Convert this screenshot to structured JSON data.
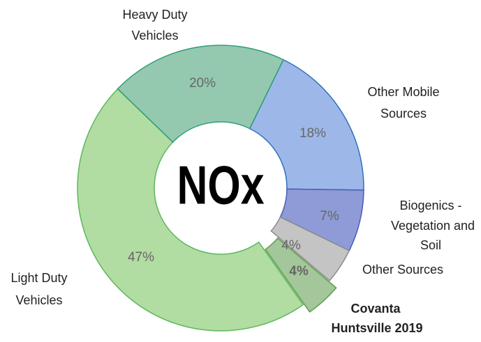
{
  "chart_data": {
    "type": "donut",
    "center_text": "NOx",
    "categories": [
      [
        "Other Mobile",
        "Sources"
      ],
      [
        "Biogenics -",
        "Vegetation and",
        "Soil"
      ],
      [
        "Other Sources"
      ],
      [
        "Covanta",
        "Huntsville 2019"
      ],
      [
        "Light Duty",
        "Vehicles"
      ],
      [
        "Heavy Duty",
        "Vehicles"
      ]
    ],
    "values": [
      18,
      7,
      4,
      4,
      47,
      20
    ],
    "value_labels": [
      "18%",
      "7%",
      "4%",
      "4%",
      "47%",
      "20%"
    ],
    "colors": [
      "#9db8e8",
      "#8e9bd6",
      "#c4c4c4",
      "#a3c79a",
      "#b1dca2",
      "#94c9b0"
    ],
    "edge_colors": [
      "#2e6fc0",
      "#4a5cb8",
      "#8c8c8c",
      "#5e9c4c",
      "#5cb85c",
      "#2f9c78"
    ]
  }
}
